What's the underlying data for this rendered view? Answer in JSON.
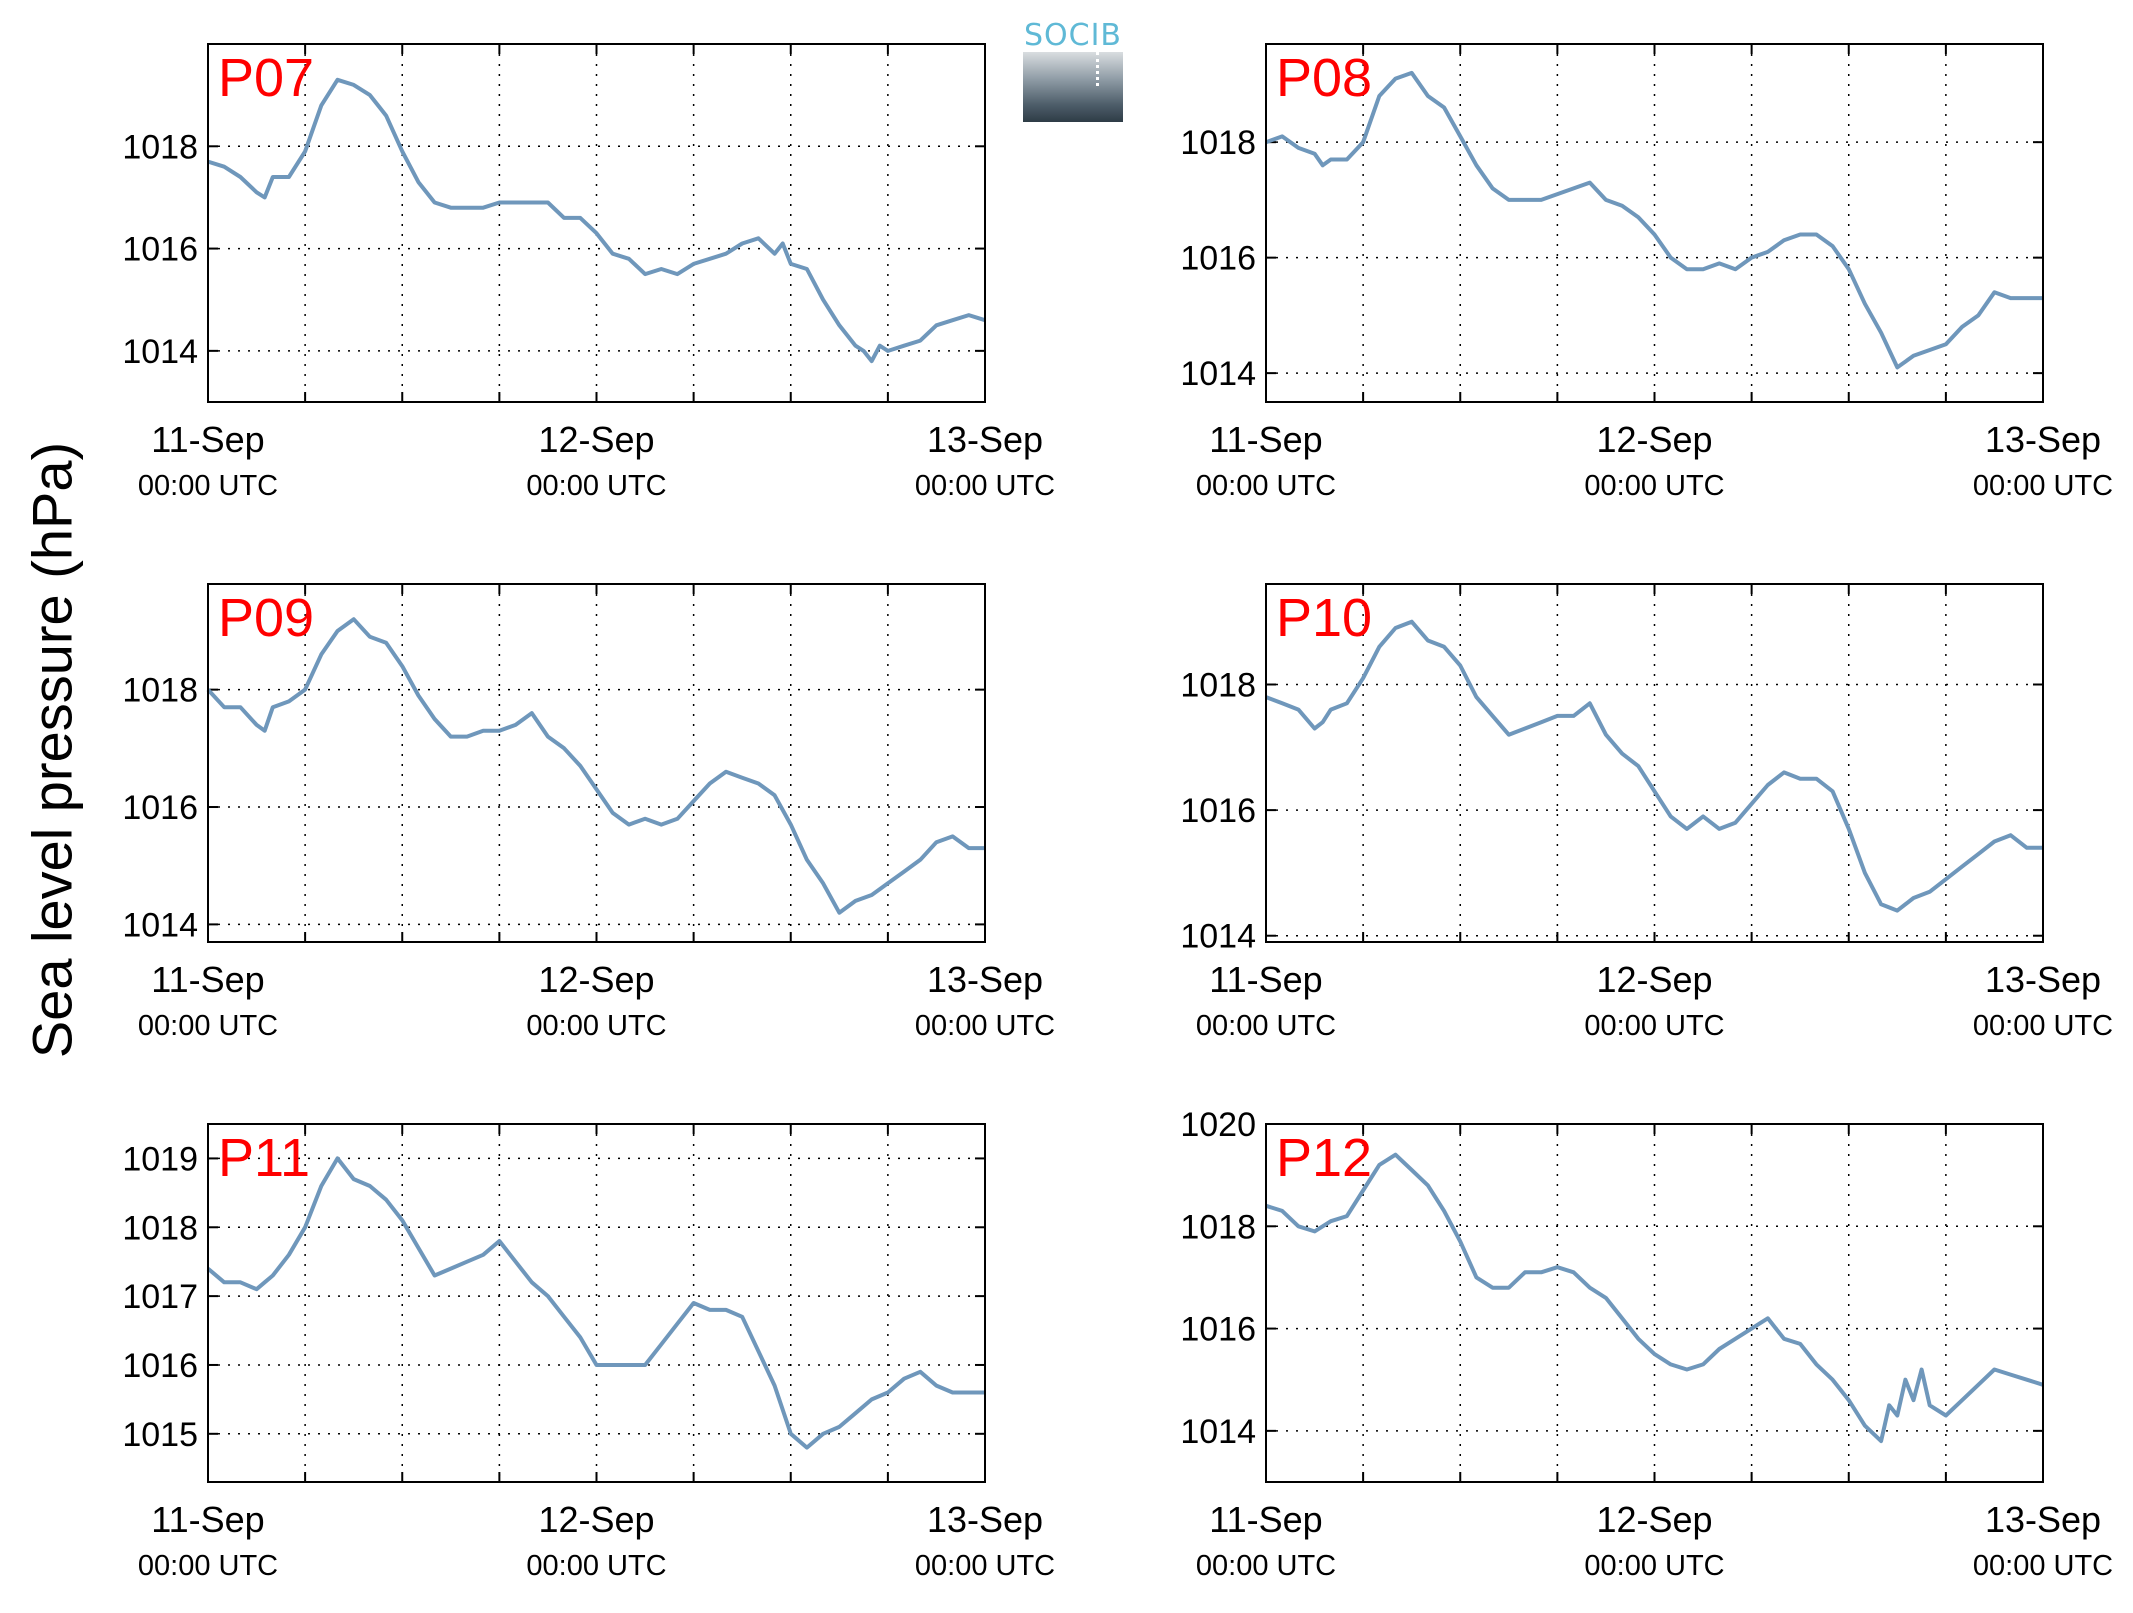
{
  "figure": {
    "ylabel": "Sea level pressure (hPa)",
    "logo_text": "SOCIB"
  },
  "style": {
    "line_color": "#6f97bb",
    "panel_title_color": "#ff0000"
  },
  "chart_data": [
    {
      "type": "line",
      "title": "P07",
      "xlim": [
        0,
        48
      ],
      "ylim": [
        1013,
        1020
      ],
      "yticks": [
        1014,
        1016,
        1018
      ],
      "xticks": [
        {
          "x": 0,
          "label": "11-Sep",
          "sub": "00:00 UTC"
        },
        {
          "x": 24,
          "label": "12-Sep",
          "sub": "00:00 UTC"
        },
        {
          "x": 48,
          "label": "13-Sep",
          "sub": "00:00 UTC"
        }
      ],
      "xgrid": [
        6,
        12,
        18,
        24,
        30,
        36,
        42
      ],
      "series": [
        {
          "x": [
            0,
            1,
            2,
            3,
            3.5,
            4,
            5,
            6,
            7,
            8,
            9,
            10,
            11,
            12,
            13,
            14,
            15,
            16,
            17,
            18,
            19,
            20,
            21,
            22,
            23,
            24,
            25,
            26,
            27,
            28,
            29,
            30,
            31,
            32,
            33,
            34,
            35,
            35.5,
            36,
            37,
            38,
            39,
            40,
            40.5,
            41,
            41.5,
            42,
            43,
            44,
            45,
            46,
            47,
            48
          ],
          "y": [
            1017.7,
            1017.6,
            1017.4,
            1017.1,
            1017.0,
            1017.4,
            1017.4,
            1017.9,
            1018.8,
            1019.3,
            1019.2,
            1019.0,
            1018.6,
            1017.9,
            1017.3,
            1016.9,
            1016.8,
            1016.8,
            1016.8,
            1016.9,
            1016.9,
            1016.9,
            1016.9,
            1016.6,
            1016.6,
            1016.3,
            1015.9,
            1015.8,
            1015.5,
            1015.6,
            1015.5,
            1015.7,
            1015.8,
            1015.9,
            1016.1,
            1016.2,
            1015.9,
            1016.1,
            1015.7,
            1015.6,
            1015.0,
            1014.5,
            1014.1,
            1014.0,
            1013.8,
            1014.1,
            1014.0,
            1014.1,
            1014.2,
            1014.5,
            1014.6,
            1014.7,
            1014.6
          ]
        }
      ]
    },
    {
      "type": "line",
      "title": "P08",
      "xlim": [
        0,
        48
      ],
      "ylim": [
        1013.5,
        1019.7
      ],
      "yticks": [
        1014,
        1016,
        1018
      ],
      "xticks": [
        {
          "x": 0,
          "label": "11-Sep",
          "sub": "00:00 UTC"
        },
        {
          "x": 24,
          "label": "12-Sep",
          "sub": "00:00 UTC"
        },
        {
          "x": 48,
          "label": "13-Sep",
          "sub": "00:00 UTC"
        }
      ],
      "xgrid": [
        6,
        12,
        18,
        24,
        30,
        36,
        42
      ],
      "series": [
        {
          "x": [
            0,
            1,
            2,
            3,
            3.5,
            4,
            5,
            6,
            7,
            8,
            9,
            10,
            11,
            12,
            13,
            14,
            15,
            16,
            17,
            18,
            19,
            20,
            21,
            22,
            23,
            24,
            25,
            26,
            27,
            28,
            29,
            30,
            31,
            32,
            33,
            34,
            35,
            36,
            37,
            38,
            39,
            40,
            41,
            42,
            43,
            44,
            45,
            46,
            47,
            48
          ],
          "y": [
            1018.0,
            1018.1,
            1017.9,
            1017.8,
            1017.6,
            1017.7,
            1017.7,
            1018.0,
            1018.8,
            1019.1,
            1019.2,
            1018.8,
            1018.6,
            1018.1,
            1017.6,
            1017.2,
            1017.0,
            1017.0,
            1017.0,
            1017.1,
            1017.2,
            1017.3,
            1017.0,
            1016.9,
            1016.7,
            1016.4,
            1016.0,
            1015.8,
            1015.8,
            1015.9,
            1015.8,
            1016.0,
            1016.1,
            1016.3,
            1016.4,
            1016.4,
            1016.2,
            1015.8,
            1015.2,
            1014.7,
            1014.1,
            1014.3,
            1014.4,
            1014.5,
            1014.8,
            1015.0,
            1015.4,
            1015.3,
            1015.3,
            1015.3
          ]
        }
      ]
    },
    {
      "type": "line",
      "title": "P09",
      "xlim": [
        0,
        48
      ],
      "ylim": [
        1013.7,
        1019.8
      ],
      "yticks": [
        1014,
        1016,
        1018
      ],
      "xticks": [
        {
          "x": 0,
          "label": "11-Sep",
          "sub": "00:00 UTC"
        },
        {
          "x": 24,
          "label": "12-Sep",
          "sub": "00:00 UTC"
        },
        {
          "x": 48,
          "label": "13-Sep",
          "sub": "00:00 UTC"
        }
      ],
      "xgrid": [
        6,
        12,
        18,
        24,
        30,
        36,
        42
      ],
      "series": [
        {
          "x": [
            0,
            1,
            2,
            3,
            3.5,
            4,
            5,
            6,
            7,
            8,
            9,
            10,
            11,
            12,
            13,
            14,
            15,
            16,
            17,
            18,
            19,
            20,
            21,
            22,
            23,
            24,
            25,
            26,
            27,
            28,
            29,
            30,
            31,
            32,
            33,
            34,
            35,
            36,
            37,
            38,
            39,
            40,
            41,
            42,
            43,
            44,
            45,
            46,
            47,
            48
          ],
          "y": [
            1018.0,
            1017.7,
            1017.7,
            1017.4,
            1017.3,
            1017.7,
            1017.8,
            1018.0,
            1018.6,
            1019.0,
            1019.2,
            1018.9,
            1018.8,
            1018.4,
            1017.9,
            1017.5,
            1017.2,
            1017.2,
            1017.3,
            1017.3,
            1017.4,
            1017.6,
            1017.2,
            1017.0,
            1016.7,
            1016.3,
            1015.9,
            1015.7,
            1015.8,
            1015.7,
            1015.8,
            1016.1,
            1016.4,
            1016.6,
            1016.5,
            1016.4,
            1016.2,
            1015.7,
            1015.1,
            1014.7,
            1014.2,
            1014.4,
            1014.5,
            1014.7,
            1014.9,
            1015.1,
            1015.4,
            1015.5,
            1015.3,
            1015.3
          ]
        }
      ]
    },
    {
      "type": "line",
      "title": "P10",
      "xlim": [
        0,
        48
      ],
      "ylim": [
        1013.9,
        1019.6
      ],
      "yticks": [
        1014,
        1016,
        1018
      ],
      "xticks": [
        {
          "x": 0,
          "label": "11-Sep",
          "sub": "00:00 UTC"
        },
        {
          "x": 24,
          "label": "12-Sep",
          "sub": "00:00 UTC"
        },
        {
          "x": 48,
          "label": "13-Sep",
          "sub": "00:00 UTC"
        }
      ],
      "xgrid": [
        6,
        12,
        18,
        24,
        30,
        36,
        42
      ],
      "series": [
        {
          "x": [
            0,
            1,
            2,
            3,
            3.5,
            4,
            5,
            6,
            7,
            8,
            9,
            10,
            11,
            12,
            13,
            14,
            15,
            16,
            17,
            18,
            19,
            20,
            21,
            22,
            23,
            24,
            25,
            26,
            27,
            28,
            29,
            30,
            31,
            32,
            33,
            34,
            35,
            36,
            37,
            38,
            39,
            40,
            41,
            42,
            43,
            44,
            45,
            46,
            47,
            48
          ],
          "y": [
            1017.8,
            1017.7,
            1017.6,
            1017.3,
            1017.4,
            1017.6,
            1017.7,
            1018.1,
            1018.6,
            1018.9,
            1019.0,
            1018.7,
            1018.6,
            1018.3,
            1017.8,
            1017.5,
            1017.2,
            1017.3,
            1017.4,
            1017.5,
            1017.5,
            1017.7,
            1017.2,
            1016.9,
            1016.7,
            1016.3,
            1015.9,
            1015.7,
            1015.9,
            1015.7,
            1015.8,
            1016.1,
            1016.4,
            1016.6,
            1016.5,
            1016.5,
            1016.3,
            1015.7,
            1015.0,
            1014.5,
            1014.4,
            1014.6,
            1014.7,
            1014.9,
            1015.1,
            1015.3,
            1015.5,
            1015.6,
            1015.4,
            1015.4
          ]
        }
      ]
    },
    {
      "type": "line",
      "title": "P11",
      "xlim": [
        0,
        48
      ],
      "ylim": [
        1014.3,
        1019.5
      ],
      "yticks": [
        1015,
        1016,
        1017,
        1018,
        1019
      ],
      "xticks": [
        {
          "x": 0,
          "label": "11-Sep",
          "sub": "00:00 UTC"
        },
        {
          "x": 24,
          "label": "12-Sep",
          "sub": "00:00 UTC"
        },
        {
          "x": 48,
          "label": "13-Sep",
          "sub": "00:00 UTC"
        }
      ],
      "xgrid": [
        6,
        12,
        18,
        24,
        30,
        36,
        42
      ],
      "series": [
        {
          "x": [
            0,
            1,
            2,
            3,
            3.5,
            4,
            5,
            6,
            7,
            8,
            9,
            10,
            11,
            12,
            13,
            14,
            15,
            16,
            17,
            18,
            19,
            20,
            21,
            22,
            23,
            24,
            25,
            26,
            27,
            28,
            29,
            30,
            31,
            32,
            33,
            34,
            35,
            36,
            37,
            38,
            39,
            40,
            41,
            42,
            43,
            44,
            45,
            46,
            47,
            48
          ],
          "y": [
            1017.4,
            1017.2,
            1017.2,
            1017.1,
            1017.2,
            1017.3,
            1017.6,
            1018.0,
            1018.6,
            1019.0,
            1018.7,
            1018.6,
            1018.4,
            1018.1,
            1017.7,
            1017.3,
            1017.4,
            1017.5,
            1017.6,
            1017.8,
            1017.5,
            1017.2,
            1017.0,
            1016.7,
            1016.4,
            1016.0,
            1016.0,
            1016.0,
            1016.0,
            1016.3,
            1016.6,
            1016.9,
            1016.8,
            1016.8,
            1016.7,
            1016.2,
            1015.7,
            1015.0,
            1014.8,
            1015.0,
            1015.1,
            1015.3,
            1015.5,
            1015.6,
            1015.8,
            1015.9,
            1015.7,
            1015.6,
            1015.6,
            1015.6
          ]
        }
      ]
    },
    {
      "type": "line",
      "title": "P12",
      "xlim": [
        0,
        48
      ],
      "ylim": [
        1013,
        1020
      ],
      "yticks": [
        1014,
        1016,
        1018,
        1020
      ],
      "xticks": [
        {
          "x": 0,
          "label": "11-Sep",
          "sub": "00:00 UTC"
        },
        {
          "x": 24,
          "label": "12-Sep",
          "sub": "00:00 UTC"
        },
        {
          "x": 48,
          "label": "13-Sep",
          "sub": "00:00 UTC"
        }
      ],
      "xgrid": [
        6,
        12,
        18,
        24,
        30,
        36,
        42
      ],
      "series": [
        {
          "x": [
            0,
            1,
            2,
            3,
            4,
            5,
            6,
            7,
            8,
            9,
            10,
            11,
            12,
            13,
            14,
            15,
            16,
            17,
            18,
            19,
            20,
            21,
            22,
            23,
            24,
            25,
            26,
            27,
            28,
            29,
            30,
            31,
            32,
            33,
            34,
            35,
            36,
            37,
            38,
            38.5,
            39,
            39.5,
            40,
            40.5,
            41,
            42,
            43,
            44,
            45,
            46,
            47,
            48
          ],
          "y": [
            1018.4,
            1018.3,
            1018.0,
            1017.9,
            1018.1,
            1018.2,
            1018.7,
            1019.2,
            1019.4,
            1019.1,
            1018.8,
            1018.3,
            1017.7,
            1017.0,
            1016.8,
            1016.8,
            1017.1,
            1017.1,
            1017.2,
            1017.1,
            1016.8,
            1016.6,
            1016.2,
            1015.8,
            1015.5,
            1015.3,
            1015.2,
            1015.3,
            1015.6,
            1015.8,
            1016.0,
            1016.2,
            1015.8,
            1015.7,
            1015.3,
            1015.0,
            1014.6,
            1014.1,
            1013.8,
            1014.5,
            1014.3,
            1015.0,
            1014.6,
            1015.2,
            1014.5,
            1014.3,
            1014.6,
            1014.9,
            1015.2,
            1015.1,
            1015.0,
            1014.9
          ]
        }
      ]
    }
  ]
}
